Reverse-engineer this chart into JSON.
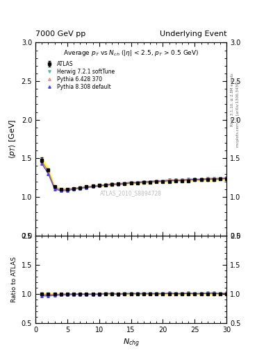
{
  "title_left": "7000 GeV pp",
  "title_right": "Underlying Event",
  "plot_title": "Average $p_T$ vs $N_{ch}$ ($|\\eta|$ < 2.5, $p_T$ > 0.5 GeV)",
  "ylabel_main": "$\\langle p_T \\rangle$ [GeV]",
  "ylabel_ratio": "Ratio to ATLAS",
  "xlabel": "$N_{chg}$",
  "right_label_top": "Rivet 3.1.10, ≥ 2.8M events",
  "right_label_bottom": "mcplots.cern.ch [arXiv:1306.3436]",
  "watermark": "ATLAS_2010_S8894728",
  "xlim": [
    0,
    30
  ],
  "ylim_main": [
    0.5,
    3.0
  ],
  "ylim_ratio": [
    0.5,
    2.0
  ],
  "yticks_main": [
    0.5,
    1.0,
    1.5,
    2.0,
    2.5,
    3.0
  ],
  "yticks_ratio": [
    0.5,
    1.0,
    1.5,
    2.0
  ],
  "atlas_x": [
    1,
    2,
    3,
    4,
    5,
    6,
    7,
    8,
    9,
    10,
    11,
    12,
    13,
    14,
    15,
    16,
    17,
    18,
    19,
    20,
    21,
    22,
    23,
    24,
    25,
    26,
    27,
    28,
    29,
    30
  ],
  "atlas_y": [
    1.48,
    1.35,
    1.13,
    1.1,
    1.1,
    1.11,
    1.12,
    1.13,
    1.14,
    1.15,
    1.15,
    1.16,
    1.17,
    1.17,
    1.18,
    1.18,
    1.19,
    1.19,
    1.2,
    1.2,
    1.2,
    1.21,
    1.21,
    1.21,
    1.22,
    1.22,
    1.22,
    1.22,
    1.23,
    1.23
  ],
  "atlas_yerr": [
    0.03,
    0.02,
    0.01,
    0.01,
    0.01,
    0.01,
    0.01,
    0.01,
    0.01,
    0.01,
    0.01,
    0.01,
    0.01,
    0.01,
    0.01,
    0.01,
    0.01,
    0.01,
    0.01,
    0.01,
    0.01,
    0.01,
    0.01,
    0.01,
    0.01,
    0.01,
    0.01,
    0.01,
    0.01,
    0.01
  ],
  "herwig_x": [
    1,
    2,
    3,
    4,
    5,
    6,
    7,
    8,
    9,
    10,
    11,
    12,
    13,
    14,
    15,
    16,
    17,
    18,
    19,
    20,
    21,
    22,
    23,
    24,
    25,
    26,
    27,
    28,
    29,
    30
  ],
  "herwig_y": [
    1.46,
    1.33,
    1.12,
    1.09,
    1.1,
    1.11,
    1.12,
    1.13,
    1.14,
    1.15,
    1.16,
    1.17,
    1.17,
    1.18,
    1.19,
    1.19,
    1.2,
    1.2,
    1.21,
    1.21,
    1.22,
    1.22,
    1.22,
    1.23,
    1.23,
    1.23,
    1.24,
    1.24,
    1.24,
    1.25
  ],
  "pythia6_x": [
    1,
    2,
    3,
    4,
    5,
    6,
    7,
    8,
    9,
    10,
    11,
    12,
    13,
    14,
    15,
    16,
    17,
    18,
    19,
    20,
    21,
    22,
    23,
    24,
    25,
    26,
    27,
    28,
    29,
    30
  ],
  "pythia6_y": [
    1.46,
    1.33,
    1.12,
    1.09,
    1.1,
    1.11,
    1.12,
    1.13,
    1.14,
    1.15,
    1.16,
    1.17,
    1.17,
    1.18,
    1.19,
    1.19,
    1.2,
    1.2,
    1.21,
    1.21,
    1.22,
    1.22,
    1.22,
    1.23,
    1.23,
    1.23,
    1.24,
    1.24,
    1.24,
    1.25
  ],
  "pythia8_x": [
    1,
    2,
    3,
    4,
    5,
    6,
    7,
    8,
    9,
    10,
    11,
    12,
    13,
    14,
    15,
    16,
    17,
    18,
    19,
    20,
    21,
    22,
    23,
    24,
    25,
    26,
    27,
    28,
    29,
    30
  ],
  "pythia8_y": [
    1.43,
    1.3,
    1.1,
    1.08,
    1.08,
    1.1,
    1.11,
    1.12,
    1.13,
    1.14,
    1.15,
    1.16,
    1.16,
    1.17,
    1.18,
    1.18,
    1.19,
    1.19,
    1.2,
    1.2,
    1.21,
    1.21,
    1.21,
    1.22,
    1.22,
    1.22,
    1.23,
    1.23,
    1.23,
    1.24
  ],
  "atlas_color": "#000000",
  "herwig_color": "#4DBEAC",
  "pythia6_color": "#FF6666",
  "pythia8_color": "#4444FF",
  "atlas_ratio": [
    1.0,
    1.0,
    1.0,
    1.0,
    1.0,
    1.0,
    1.0,
    1.0,
    1.0,
    1.0,
    1.0,
    1.0,
    1.0,
    1.0,
    1.0,
    1.0,
    1.0,
    1.0,
    1.0,
    1.0,
    1.0,
    1.0,
    1.0,
    1.0,
    1.0,
    1.0,
    1.0,
    1.0,
    1.0,
    1.0
  ],
  "herwig_ratio": [
    0.986,
    0.985,
    0.991,
    0.991,
    1.0,
    1.0,
    1.0,
    1.0,
    1.0,
    1.0,
    1.009,
    1.009,
    1.0,
    1.009,
    1.008,
    1.008,
    1.008,
    1.008,
    1.008,
    1.008,
    1.017,
    1.008,
    1.008,
    1.017,
    1.008,
    1.008,
    1.016,
    1.016,
    1.008,
    1.016
  ],
  "pythia6_ratio": [
    0.986,
    0.985,
    0.991,
    0.991,
    1.0,
    1.0,
    1.0,
    1.0,
    1.0,
    1.0,
    1.009,
    1.009,
    1.0,
    1.009,
    1.008,
    1.008,
    1.008,
    1.008,
    1.008,
    1.008,
    1.017,
    1.008,
    1.008,
    1.017,
    1.008,
    1.008,
    1.016,
    1.016,
    1.008,
    1.016
  ],
  "pythia8_ratio": [
    0.966,
    0.963,
    0.973,
    0.982,
    0.982,
    0.991,
    0.991,
    0.991,
    0.991,
    0.991,
    1.0,
    1.0,
    0.991,
    1.0,
    1.0,
    1.0,
    1.0,
    1.0,
    1.0,
    1.0,
    1.008,
    1.0,
    1.0,
    1.008,
    1.0,
    1.0,
    1.008,
    1.008,
    1.0,
    1.008
  ],
  "atlas_ratio_err": [
    0.02,
    0.015,
    0.009,
    0.009,
    0.009,
    0.009,
    0.009,
    0.009,
    0.009,
    0.009,
    0.009,
    0.009,
    0.009,
    0.009,
    0.009,
    0.009,
    0.009,
    0.009,
    0.009,
    0.009,
    0.009,
    0.009,
    0.009,
    0.009,
    0.009,
    0.009,
    0.009,
    0.009,
    0.009,
    0.009
  ],
  "background_color": "#ffffff"
}
